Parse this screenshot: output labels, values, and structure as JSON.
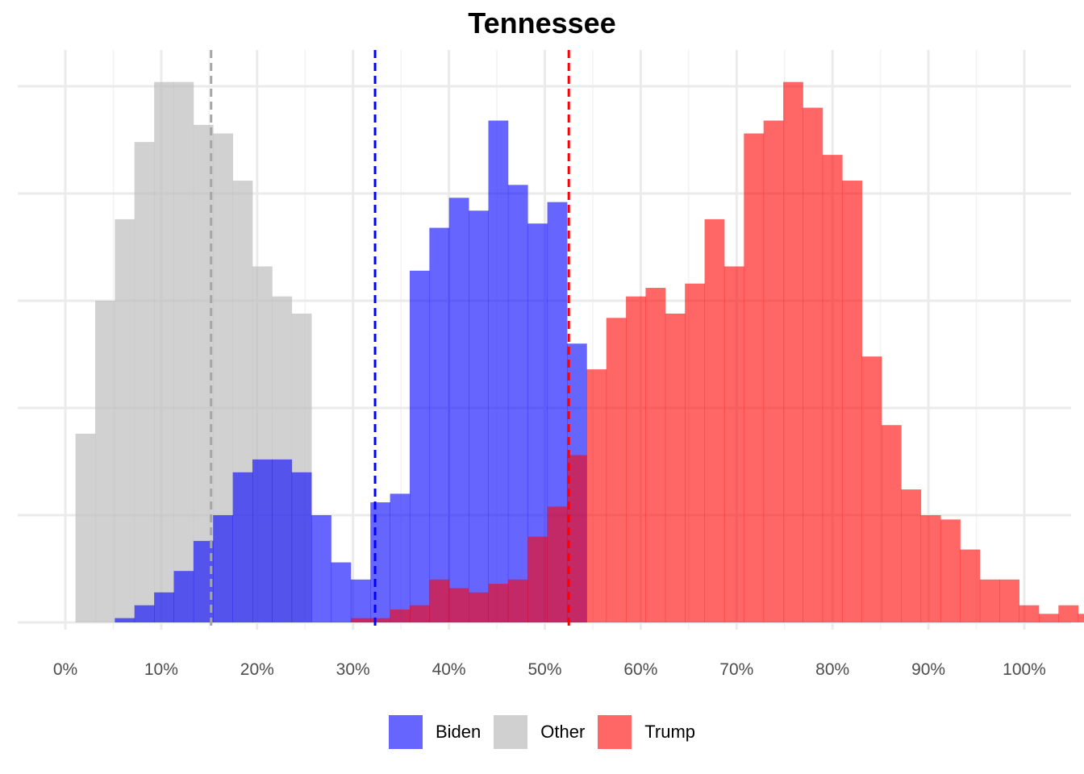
{
  "chart_data": {
    "type": "histogram",
    "title": "Tennessee",
    "xlabel": "",
    "ylabel": "",
    "x_unit": "percent",
    "xlim": [
      0,
      100
    ],
    "x_ticks": [
      "0%",
      "10%",
      "20%",
      "30%",
      "40%",
      "50%",
      "60%",
      "70%",
      "80%",
      "90%",
      "100%"
    ],
    "y_axis_labels_shown": false,
    "bin_width": 2.05,
    "grid": true,
    "legend_position": "bottom",
    "series": [
      {
        "name": "Other",
        "color": "#bebebe",
        "opacity": 0.7,
        "mean": 15.2,
        "bin_start": 1.06,
        "counts": [
          44,
          75,
          94,
          112,
          126,
          126,
          116,
          114,
          103,
          83,
          76,
          72
        ]
      },
      {
        "name": "Biden",
        "color": "#0000ff",
        "opacity": 0.6,
        "mean": 32.3,
        "bin_start": 5.16,
        "counts": [
          1,
          4,
          7,
          12,
          19,
          25,
          35,
          38,
          38,
          35,
          25,
          14,
          10,
          28,
          30,
          82,
          92,
          99,
          96,
          117,
          102,
          93,
          98,
          65
        ]
      },
      {
        "name": "Trump",
        "color": "#ff0000",
        "opacity": 0.6,
        "mean": 52.5,
        "bin_start": 9.26,
        "counts": [
          0,
          0,
          0,
          0,
          0,
          0,
          0,
          0,
          0,
          0,
          1,
          1,
          3,
          4,
          10,
          8,
          7,
          9,
          10,
          20,
          27,
          39,
          59,
          71,
          76,
          78,
          72,
          79,
          94,
          83,
          114,
          117,
          126,
          120,
          109,
          103,
          62,
          46,
          31,
          25,
          24,
          17,
          10,
          10,
          4,
          2,
          4,
          2,
          1,
          0,
          0
        ]
      }
    ]
  },
  "title": "Tennessee",
  "legend": [
    {
      "label": "Biden",
      "color": "#6666ff"
    },
    {
      "label": "Other",
      "color": "#d0d0d0"
    },
    {
      "label": "Trump",
      "color": "#ff6666"
    }
  ]
}
